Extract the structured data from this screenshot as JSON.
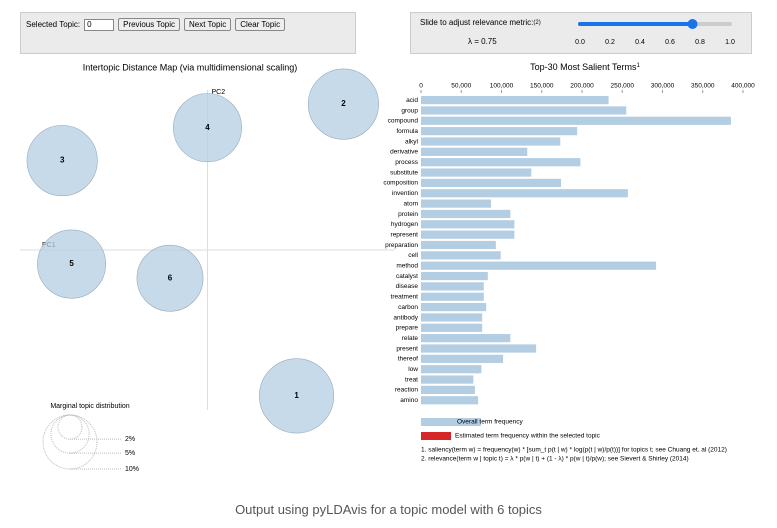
{
  "controls": {
    "selected_topic_label": "Selected Topic:",
    "selected_topic": "0",
    "buttons": [
      "Previous Topic",
      "Next Topic",
      "Clear Topic"
    ],
    "slider_label": "Slide to adjust relevance metric:",
    "slider_note": "(2)",
    "lambda_label": "λ = 0.75",
    "lambda": 0.75,
    "slider_ticks": [
      {
        "value": 0,
        "label": "0.0"
      },
      0.2,
      0.4,
      0.6,
      0.8,
      {
        "value": 1,
        "label": "1.0"
      }
    ]
  },
  "chart_data": [
    {
      "type": "scatter",
      "title": "Intertopic Distance Map (via multidimensional scaling)",
      "xlabel": "PC1",
      "ylabel": "PC2",
      "color": "#b3cde3",
      "labels": [
        "1",
        "2",
        "3",
        "4",
        "5",
        "6"
      ],
      "x": [
        0.19,
        0.29,
        -0.31,
        0.0,
        -0.29,
        -0.08
      ],
      "values": [
        -0.31,
        0.31,
        0.19,
        0.26,
        -0.03,
        -0.06
      ],
      "sizes": [
        19,
        17,
        17,
        16,
        16,
        15
      ],
      "xlim": [
        -0.4,
        0.4
      ],
      "ylim": [
        -0.34,
        0.34
      ],
      "size_legend": {
        "title": "Marginal topic distribution",
        "values": [
          2,
          5,
          10
        ],
        "labels": [
          "2%",
          "5%",
          "10%"
        ]
      }
    },
    {
      "type": "bar",
      "title": "Top-30 Most Salient Terms",
      "title_note": "1",
      "color": "#b3cde3",
      "selected_color": "#d62728",
      "categories": [
        "acid",
        "group",
        "compound",
        "formula",
        "alkyl",
        "derivative",
        "process",
        "substitute",
        "composition",
        "invention",
        "atom",
        "protein",
        "hydrogen",
        "represent",
        "preparation",
        "cell",
        "method",
        "catalyst",
        "disease",
        "treatment",
        "carbon",
        "antibody",
        "prepare",
        "relate",
        "present",
        "thereof",
        "low",
        "treat",
        "reaction",
        "amino"
      ],
      "values": [
        233000,
        255000,
        385000,
        194000,
        173000,
        132000,
        198000,
        137000,
        174000,
        257000,
        87000,
        111000,
        116000,
        116000,
        93000,
        99000,
        292000,
        83000,
        78000,
        78000,
        81000,
        76000,
        76000,
        111000,
        143000,
        102000,
        75000,
        65000,
        67000,
        71000
      ],
      "xlim": [
        0,
        400000
      ],
      "xticks": [
        0,
        {
          "value": 50000,
          "label": "50,000"
        },
        {
          "value": 100000,
          "label": "100,000"
        },
        {
          "value": 150000,
          "label": "150,000"
        },
        {
          "value": 200000,
          "label": "200,000"
        },
        {
          "value": 250000,
          "label": "250,000"
        },
        {
          "value": 300000,
          "label": "300,000"
        },
        {
          "value": 350000,
          "label": "350,000"
        },
        {
          "value": 400000,
          "label": "400,000"
        }
      ],
      "legend": [
        "Overall term frequency",
        "Estimated term frequency within the selected topic"
      ],
      "notes": [
        "1. saliency(term w) = frequency(w) * [sum_t p(t | w) * log(p(t | w)/p(t))] for topics t; see Chuang et. al (2012)",
        "2. relevance(term w | topic t) = λ * p(w | t) + (1 - λ) * p(w | t)/p(w); see Sievert & Shirley (2014)"
      ]
    }
  ],
  "caption": "Output using pyLDAvis for a topic model with 6 topics"
}
